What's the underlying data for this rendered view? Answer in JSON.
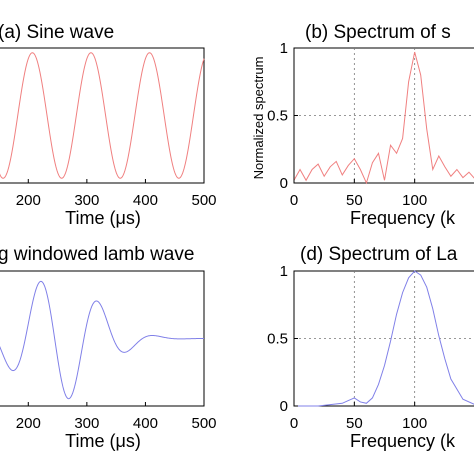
{
  "chart_data": [
    {
      "type": "line",
      "title": "(a) Sine wave",
      "xlabel": "Time (μs)",
      "ylabel": "",
      "xlim": [
        150,
        500
      ],
      "ylim": [
        -1,
        1
      ],
      "xticks": [
        200,
        300,
        400,
        500
      ],
      "xtick_labels": [
        "200",
        "300",
        "400",
        "500"
      ],
      "yticks": [],
      "grid": false,
      "color": "#f08080",
      "series": [
        {
          "kind": "sine",
          "freq_per_us": 0.01,
          "amplitude": 0.93,
          "phase_cycles": 0.18,
          "x_from": 150,
          "x_to": 500,
          "step": 1
        }
      ]
    },
    {
      "type": "line",
      "title": "(b) Spectrum of s",
      "xlabel": "Frequency (k",
      "ylabel": "Normalized spectrum",
      "xlim": [
        0,
        150
      ],
      "ylim": [
        0,
        1
      ],
      "xticks": [
        0,
        50,
        100
      ],
      "xtick_labels": [
        "0",
        "50",
        "100"
      ],
      "yticks": [
        0,
        0.5,
        1
      ],
      "ytick_labels": [
        "0",
        "0.5",
        "1"
      ],
      "grid": true,
      "color": "#f08080",
      "series": [
        {
          "x": [
            0,
            5,
            10,
            15,
            20,
            25,
            30,
            35,
            40,
            45,
            50,
            55,
            60,
            65,
            70,
            75,
            80,
            85,
            90,
            95,
            100,
            105,
            110,
            115,
            120,
            125,
            130,
            135,
            140,
            145,
            150
          ],
          "y": [
            0.02,
            0.1,
            0.02,
            0.1,
            0.14,
            0.05,
            0.12,
            0.16,
            0.06,
            0.13,
            0.18,
            0.1,
            0.0,
            0.15,
            0.22,
            0.02,
            0.28,
            0.22,
            0.33,
            0.75,
            0.97,
            0.8,
            0.4,
            0.1,
            0.2,
            0.12,
            0.05,
            0.1,
            0.04,
            0.08,
            0.03
          ]
        }
      ]
    },
    {
      "type": "line",
      "title": "g windowed lamb wave",
      "xlabel": "Time (μs)",
      "ylabel": "",
      "xlim": [
        150,
        500
      ],
      "ylim": [
        -1,
        1
      ],
      "xticks": [
        200,
        300,
        400,
        500
      ],
      "xtick_labels": [
        "200",
        "300",
        "400",
        "500"
      ],
      "yticks": [],
      "grid": false,
      "color": "#8080e8",
      "series": [
        {
          "kind": "burst",
          "freq_per_us": 0.01,
          "carrier_center": 220,
          "envelope_center": 250,
          "envelope_width": 95,
          "amplitude": 0.93,
          "x_from": 150,
          "x_to": 500,
          "step": 1
        }
      ]
    },
    {
      "type": "line",
      "title": "(d) Spectrum of La",
      "xlabel": "Frequency (k",
      "ylabel": "",
      "xlim": [
        0,
        150
      ],
      "ylim": [
        0,
        1
      ],
      "xticks": [
        0,
        50,
        100
      ],
      "xtick_labels": [
        "0",
        "50",
        "100"
      ],
      "yticks": [
        0,
        0.5,
        1
      ],
      "ytick_labels": [
        "0",
        "0.5",
        "1"
      ],
      "grid": true,
      "color": "#8080e8",
      "series": [
        {
          "x": [
            0,
            10,
            20,
            30,
            40,
            45,
            50,
            55,
            60,
            65,
            70,
            75,
            80,
            85,
            90,
            95,
            100,
            105,
            110,
            115,
            120,
            125,
            130,
            140,
            150
          ],
          "y": [
            0.0,
            0.0,
            0.0,
            0.01,
            0.02,
            0.04,
            0.06,
            0.03,
            0.02,
            0.06,
            0.16,
            0.3,
            0.48,
            0.68,
            0.84,
            0.95,
            1.0,
            0.97,
            0.88,
            0.72,
            0.52,
            0.35,
            0.2,
            0.05,
            0.01
          ]
        }
      ]
    }
  ]
}
